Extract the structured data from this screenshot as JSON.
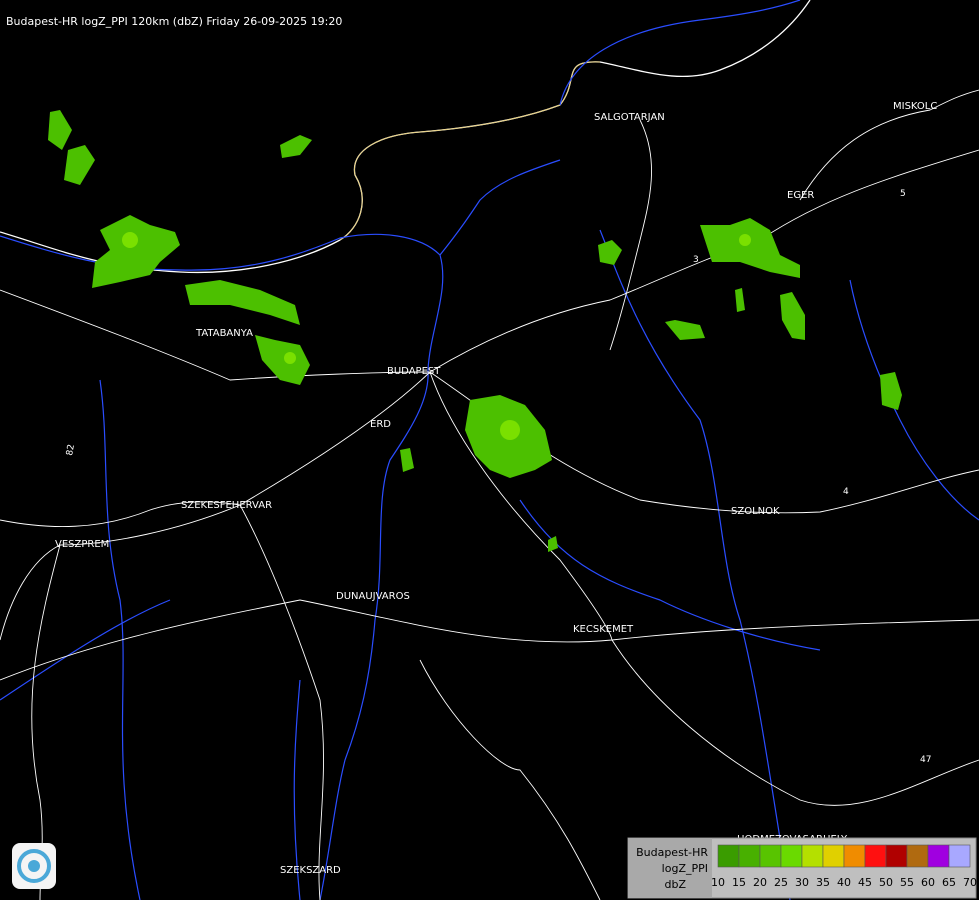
{
  "title": "Budapest-HR logZ_PPI 120km (dbZ) Friday 26-09-2025 19:20",
  "cities": [
    "SALGOTARJAN",
    "EGER",
    "TATABANYA",
    "BUDAPEST",
    "ERD",
    "SZEKESFEHERVAR",
    "VESZPREM",
    "DUNAUJVAROS",
    "KECSKEMET",
    "SZOLNOK",
    "HODMEZOVASARHELY",
    "SZEKSZARD",
    "MISKOLC"
  ],
  "roads": [
    "82",
    "3",
    "5",
    "4",
    "47"
  ],
  "legend": {
    "lines": [
      "Budapest-HR",
      "logZ_PPI",
      "dbZ"
    ],
    "levels": [
      10,
      15,
      20,
      25,
      30,
      35,
      40,
      45,
      50,
      55,
      60,
      65,
      70
    ],
    "colors": [
      "#3a9c00",
      "#48b000",
      "#58c400",
      "#6ada00",
      "#b4e000",
      "#e0d000",
      "#f08c00",
      "#ff1010",
      "#b00000",
      "#b06a10",
      "#a000e0",
      "#a8a8ff"
    ]
  }
}
